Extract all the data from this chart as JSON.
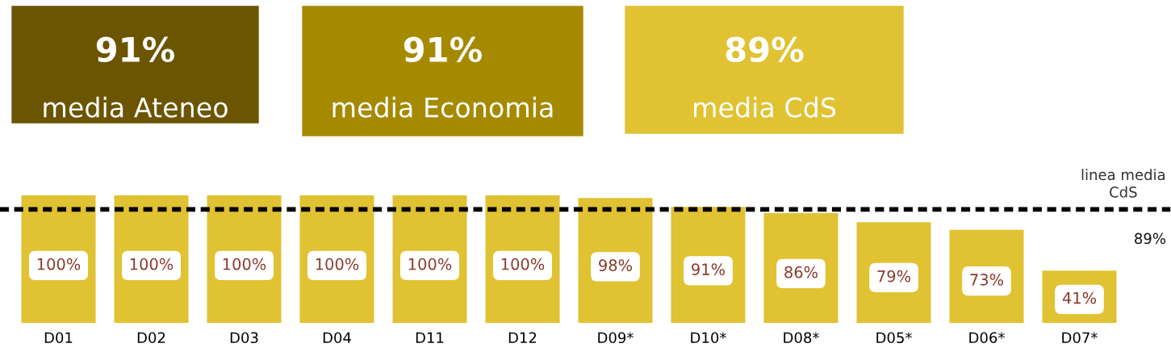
{
  "chart_data": {
    "type": "bar",
    "categories": [
      "D01",
      "D02",
      "D03",
      "D04",
      "D11",
      "D12",
      "D09*",
      "D10*",
      "D08*",
      "D05*",
      "D06*",
      "D07*"
    ],
    "values": [
      100,
      100,
      100,
      100,
      100,
      100,
      98,
      91,
      86,
      79,
      73,
      41
    ],
    "value_labels": [
      "100%",
      "100%",
      "100%",
      "100%",
      "100%",
      "100%",
      "98%",
      "91%",
      "86%",
      "79%",
      "73%",
      "41%"
    ],
    "color": "#e0c232",
    "tick_labels": "x",
    "grid": false,
    "legend": false,
    "ref_lines": [
      {
        "axis": "y",
        "value": 89,
        "label": "linea media\nCdS",
        "color": "#000000",
        "line_style": "dashed"
      }
    ],
    "annotations": [
      "91%",
      "media Ateneo",
      "91%",
      "media Economia",
      "89%",
      "media CdS",
      "89%"
    ]
  }
}
